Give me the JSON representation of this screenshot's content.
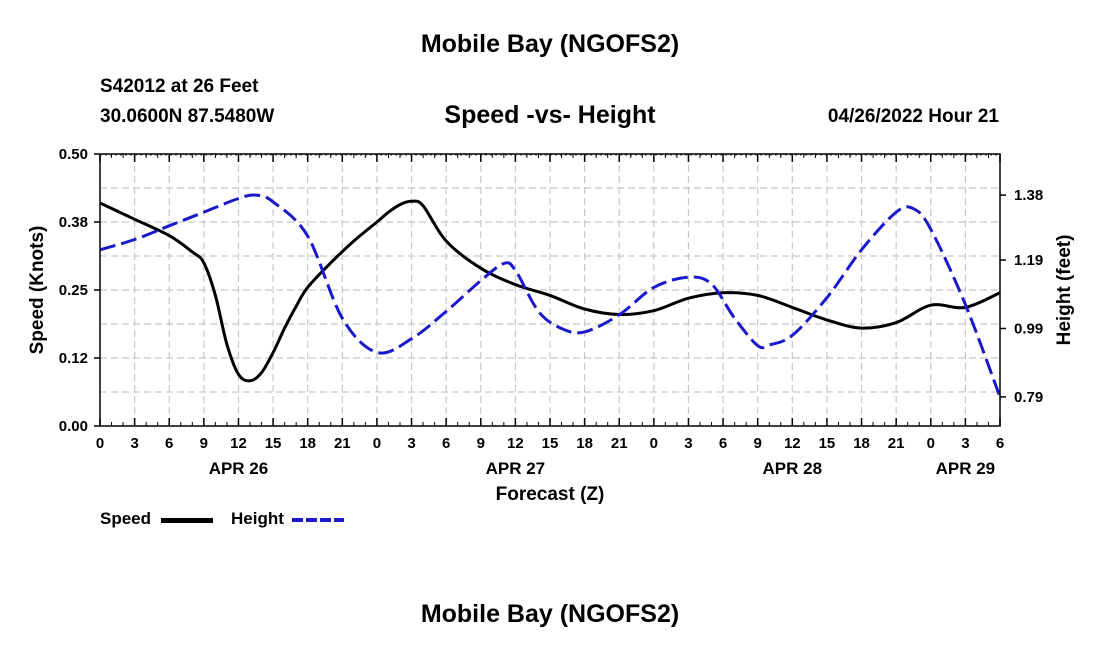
{
  "header": {
    "title": "Mobile Bay (NGOFS2)",
    "station": "S42012 at 26 Feet",
    "coords": "30.0600N  87.5480W",
    "subtitle": "Speed -vs- Height",
    "datetime": "04/26/2022 Hour 21"
  },
  "footer": {
    "title": "Mobile Bay (NGOFS2)"
  },
  "legend": {
    "speed_label": "Speed",
    "height_label": "Height"
  },
  "colors": {
    "speed": "#000000",
    "height": "#1a1acc",
    "grid": "#c8c8c8"
  },
  "chart_data": {
    "type": "line",
    "xlabel": "Forecast (Z)",
    "x_unit": "hours since 00Z Apr 26",
    "xlim": [
      0,
      78
    ],
    "x_tick_step": 3,
    "x_tick_labels": [
      "0",
      "3",
      "6",
      "9",
      "12",
      "15",
      "18",
      "21",
      "0",
      "3",
      "6",
      "9",
      "12",
      "15",
      "18",
      "21",
      "0",
      "3",
      "6",
      "9",
      "12",
      "15",
      "18",
      "21",
      "0",
      "3",
      "6"
    ],
    "date_labels": [
      {
        "x": 12,
        "label": "APR 26"
      },
      {
        "x": 36,
        "label": "APR 27"
      },
      {
        "x": 60,
        "label": "APR 28"
      },
      {
        "x": 75,
        "label": "APR 29"
      }
    ],
    "y_left": {
      "label": "Speed (Knots)",
      "lim": [
        0,
        0.5
      ],
      "ticks": [
        0,
        0.125,
        0.25,
        0.375,
        0.5
      ],
      "tick_labels": [
        "0.00",
        "0.12",
        "0.25",
        "0.38",
        "0.50"
      ]
    },
    "y_right": {
      "label": "Height (feet)",
      "lim": [
        0.705,
        1.5
      ],
      "ticks": [
        0.79,
        0.99,
        1.19,
        1.38
      ],
      "tick_labels": [
        "0.79",
        "0.99",
        "1.19",
        "1.38"
      ]
    },
    "grid": true,
    "series": [
      {
        "name": "Speed",
        "axis": "left",
        "style": "solid",
        "x": [
          0,
          3,
          6,
          8,
          9,
          10,
          11,
          12,
          13,
          14,
          15,
          16,
          17,
          18,
          20,
          22,
          24,
          25,
          26,
          27,
          28,
          30,
          33,
          36,
          39,
          42,
          45,
          48,
          51,
          54,
          57,
          60,
          63,
          66,
          69,
          72,
          75,
          78
        ],
        "y": [
          0.41,
          0.38,
          0.35,
          0.32,
          0.3,
          0.24,
          0.15,
          0.095,
          0.083,
          0.098,
          0.135,
          0.18,
          0.22,
          0.255,
          0.3,
          0.34,
          0.375,
          0.393,
          0.407,
          0.413,
          0.405,
          0.34,
          0.29,
          0.26,
          0.24,
          0.215,
          0.205,
          0.212,
          0.235,
          0.245,
          0.24,
          0.218,
          0.195,
          0.18,
          0.19,
          0.222,
          0.218,
          0.245
        ]
      },
      {
        "name": "Height",
        "axis": "right",
        "style": "dashed",
        "x": [
          0,
          3,
          6,
          9,
          12,
          13.5,
          15,
          18,
          21,
          24,
          27,
          30,
          33,
          35,
          36,
          38,
          40,
          42,
          45,
          48,
          51,
          53,
          55,
          57,
          58,
          60,
          63,
          66,
          69,
          70.5,
          72,
          75,
          78
        ],
        "y": [
          1.22,
          1.25,
          1.29,
          1.33,
          1.37,
          1.38,
          1.36,
          1.26,
          1.02,
          0.92,
          0.96,
          1.04,
          1.13,
          1.18,
          1.16,
          1.04,
          0.99,
          0.98,
          1.03,
          1.11,
          1.14,
          1.12,
          1.02,
          0.94,
          0.942,
          0.97,
          1.08,
          1.22,
          1.33,
          1.34,
          1.28,
          1.06,
          0.79
        ]
      }
    ]
  }
}
